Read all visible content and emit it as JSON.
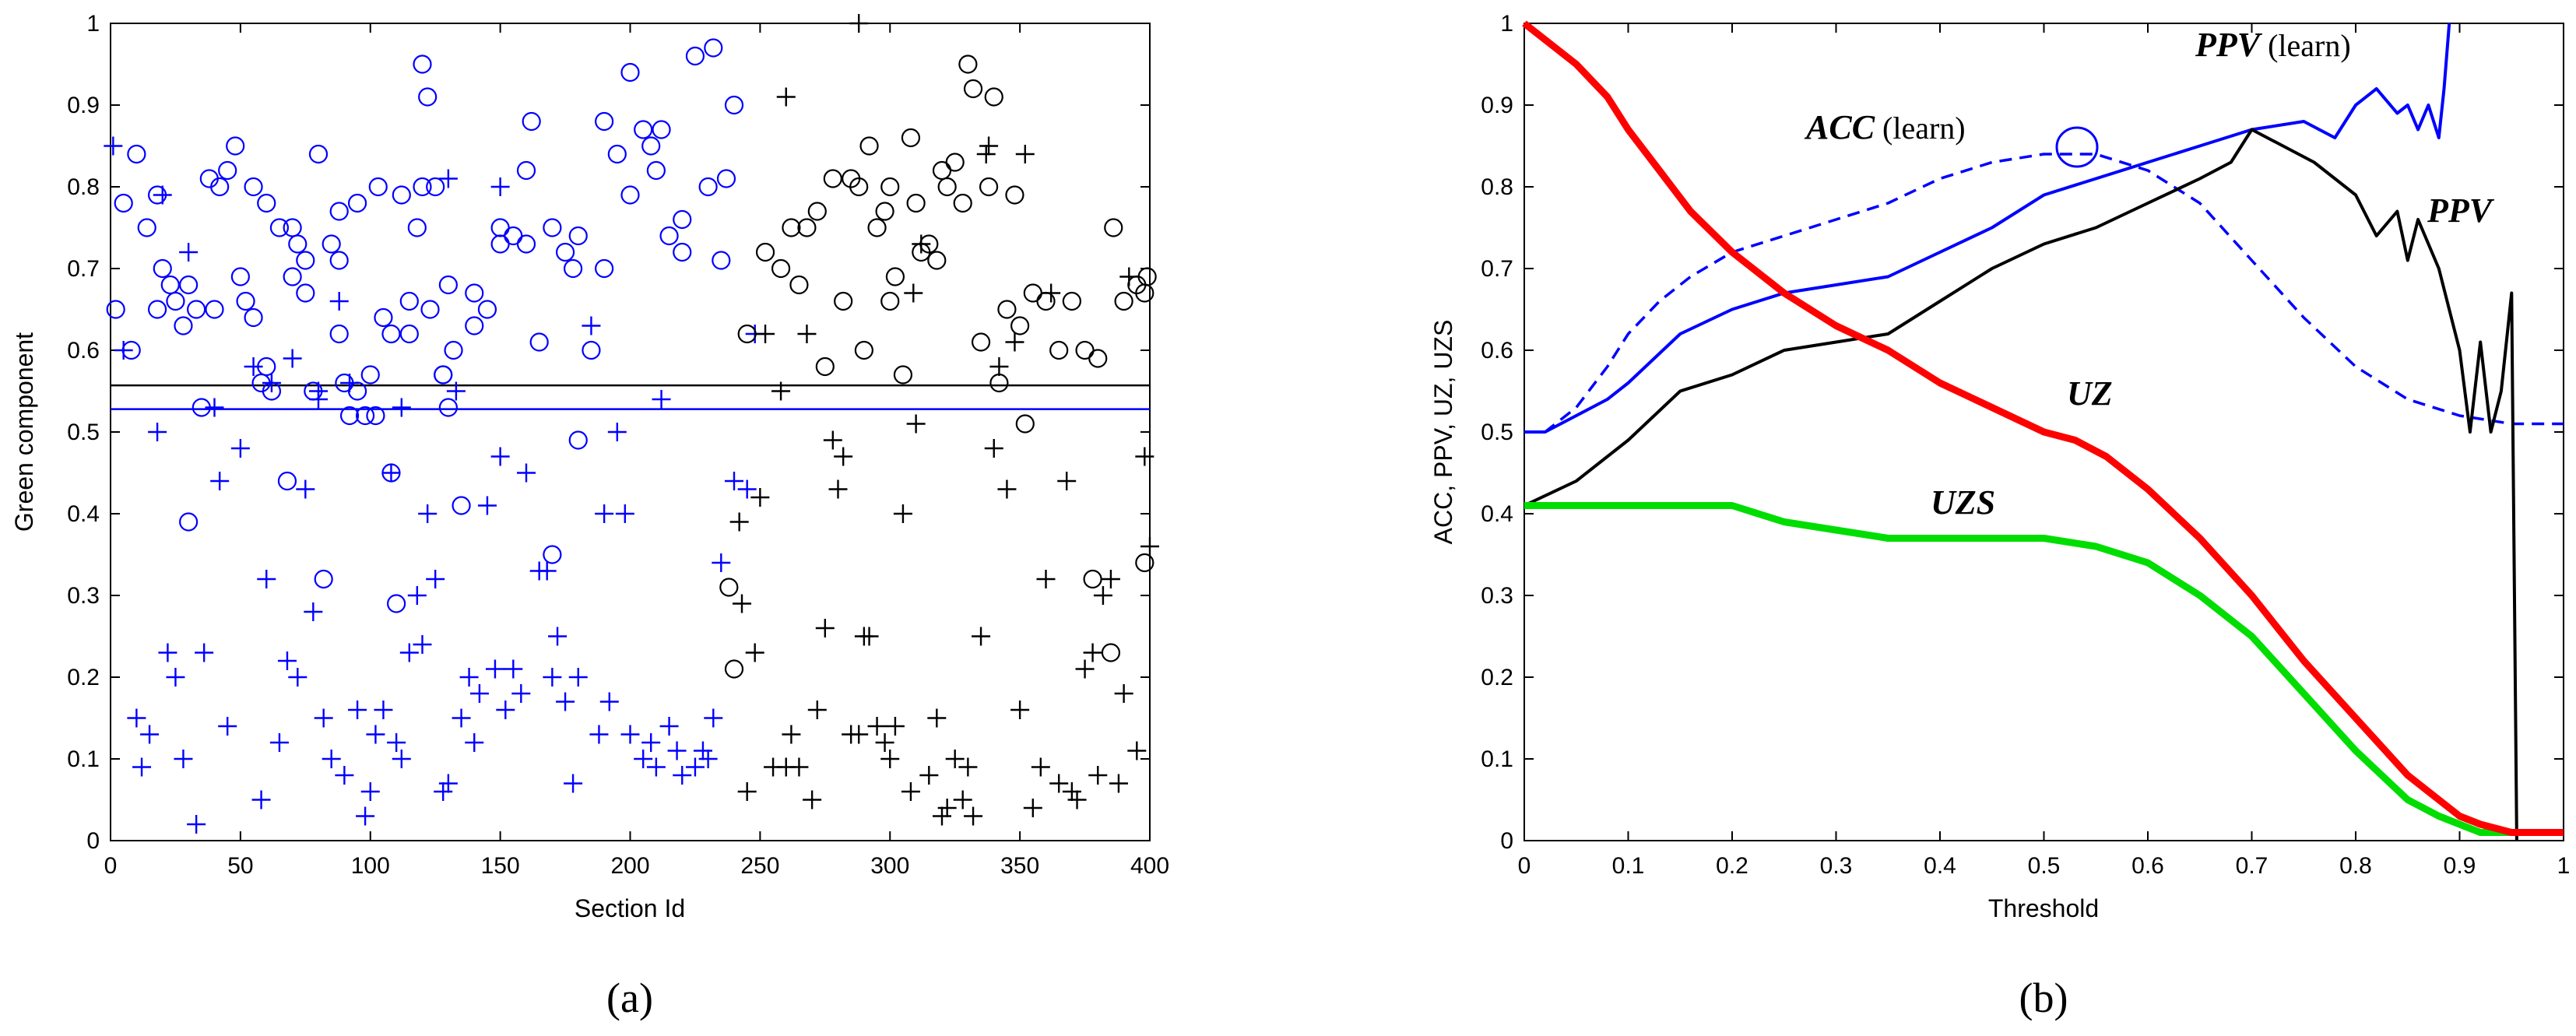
{
  "chart_data": [
    {
      "type": "scatter",
      "panel_label": "(a)",
      "xlabel": "Section Id",
      "ylabel": "Green component",
      "xlim": [
        0,
        400
      ],
      "ylim": [
        0,
        1
      ],
      "xticks": [
        "0",
        "50",
        "100",
        "150",
        "200",
        "250",
        "300",
        "350",
        "400"
      ],
      "yticks": [
        "0",
        "0.1",
        "0.2",
        "0.3",
        "0.4",
        "0.5",
        "0.6",
        "0.7",
        "0.8",
        "0.9",
        "1"
      ],
      "hlines": [
        {
          "y": 0.557,
          "color": "#000000"
        },
        {
          "y": 0.528,
          "color": "#0000ff"
        }
      ],
      "series": [
        {
          "marker": "circle",
          "color": "#0000ff",
          "x": [
            2,
            5,
            8,
            10,
            14,
            18,
            20,
            23,
            28,
            30,
            33,
            38,
            42,
            45,
            48,
            50,
            52,
            55,
            58,
            60,
            62,
            65,
            70,
            72,
            75,
            78,
            80,
            85,
            88,
            90,
            92,
            95,
            98,
            100,
            103,
            105,
            108,
            112,
            115,
            118,
            120,
            123,
            125,
            128,
            130,
            135,
            140,
            145,
            150,
            155,
            160,
            162,
            165,
            170,
            175,
            178,
            180,
            185,
            190,
            195,
            200,
            205,
            208,
            212,
            215,
            220,
            225,
            230,
            235,
            240,
            18,
            25,
            30,
            35,
            40,
            55,
            60,
            68,
            75,
            82,
            88,
            95,
            102,
            108,
            115,
            122,
            128,
            132,
            140,
            150,
            160,
            170,
            180,
            190,
            200,
            210,
            220,
            232,
            237,
            110,
            120,
            130,
            88,
            70
          ],
          "y": [
            0.65,
            0.78,
            0.6,
            0.84,
            0.75,
            0.65,
            0.7,
            0.68,
            0.63,
            0.68,
            0.65,
            0.81,
            0.8,
            0.82,
            0.85,
            0.69,
            0.66,
            0.8,
            0.56,
            0.78,
            0.55,
            0.75,
            0.69,
            0.73,
            0.71,
            0.55,
            0.84,
            0.73,
            0.77,
            0.56,
            0.52,
            0.55,
            0.52,
            0.57,
            0.8,
            0.64,
            0.62,
            0.79,
            0.66,
            0.75,
            0.95,
            0.65,
            0.8,
            0.57,
            0.53,
            0.41,
            0.67,
            0.65,
            0.75,
            0.74,
            0.82,
            0.88,
            0.61,
            0.75,
            0.72,
            0.7,
            0.74,
            0.6,
            0.88,
            0.84,
            0.94,
            0.87,
            0.85,
            0.87,
            0.74,
            0.72,
            0.96,
            0.8,
            0.71,
            0.9,
            0.79,
            0.66,
            0.39,
            0.53,
            0.65,
            0.64,
            0.58,
            0.44,
            0.67,
            0.32,
            0.62,
            0.78,
            0.52,
            0.45,
            0.62,
            0.91,
            0.57,
            0.6,
            0.63,
            0.73,
            0.73,
            0.35,
            0.49,
            0.7,
            0.79,
            0.82,
            0.76,
            0.97,
            0.81,
            0.29,
            0.8,
            0.68,
            0.71,
            0.75
          ]
        },
        {
          "marker": "plus",
          "color": "#0000ff",
          "x": [
            1,
            5,
            10,
            12,
            15,
            18,
            20,
            22,
            25,
            28,
            30,
            33,
            36,
            40,
            42,
            45,
            50,
            55,
            58,
            60,
            62,
            65,
            68,
            70,
            72,
            75,
            78,
            80,
            82,
            85,
            88,
            90,
            92,
            95,
            98,
            100,
            102,
            105,
            108,
            110,
            112,
            115,
            118,
            120,
            122,
            125,
            128,
            130,
            133,
            135,
            138,
            140,
            142,
            145,
            148,
            150,
            152,
            155,
            158,
            160,
            165,
            168,
            170,
            172,
            175,
            178,
            180,
            185,
            188,
            190,
            192,
            195,
            198,
            200,
            205,
            208,
            210,
            212,
            215,
            218,
            220,
            225,
            228,
            230,
            232,
            235,
            240,
            245,
            248,
            150,
            130,
            112,
            80
          ],
          "y": [
            0.85,
            0.6,
            0.15,
            0.09,
            0.13,
            0.5,
            0.79,
            0.23,
            0.2,
            0.1,
            0.72,
            0.02,
            0.23,
            0.53,
            0.44,
            0.14,
            0.48,
            0.58,
            0.05,
            0.32,
            0.56,
            0.12,
            0.22,
            0.59,
            0.2,
            0.43,
            0.28,
            0.54,
            0.15,
            0.1,
            0.66,
            0.08,
            0.56,
            0.16,
            0.03,
            0.06,
            0.13,
            0.16,
            0.45,
            0.12,
            0.1,
            0.23,
            0.3,
            0.24,
            0.4,
            0.32,
            0.06,
            0.07,
            0.55,
            0.15,
            0.2,
            0.12,
            0.18,
            0.41,
            0.21,
            0.47,
            0.16,
            0.21,
            0.18,
            0.45,
            0.33,
            0.33,
            0.2,
            0.25,
            0.17,
            0.07,
            0.2,
            0.63,
            0.13,
            0.4,
            0.17,
            0.5,
            0.4,
            0.13,
            0.1,
            0.12,
            0.09,
            0.54,
            0.14,
            0.11,
            0.08,
            0.09,
            0.11,
            0.1,
            0.15,
            0.34,
            0.44,
            0.43,
            0.62,
            0.8,
            0.81,
            0.53,
            0.55
          ]
        },
        {
          "marker": "circle",
          "color": "#000000",
          "x": [
            238,
            245,
            252,
            258,
            262,
            265,
            268,
            272,
            275,
            278,
            282,
            285,
            288,
            290,
            292,
            295,
            298,
            300,
            302,
            305,
            308,
            310,
            312,
            315,
            318,
            320,
            322,
            325,
            328,
            330,
            332,
            335,
            338,
            340,
            342,
            345,
            350,
            355,
            360,
            365,
            370,
            375,
            380,
            385,
            390,
            395,
            398,
            399,
            240,
            300,
            348,
            352,
            378,
            386,
            398
          ],
          "y": [
            0.31,
            0.62,
            0.72,
            0.7,
            0.75,
            0.68,
            0.75,
            0.77,
            0.58,
            0.81,
            0.66,
            0.81,
            0.8,
            0.6,
            0.85,
            0.75,
            0.77,
            0.66,
            0.69,
            0.57,
            0.86,
            0.78,
            0.72,
            0.73,
            0.71,
            0.82,
            0.8,
            0.83,
            0.78,
            0.95,
            0.92,
            0.61,
            0.8,
            0.91,
            0.56,
            0.65,
            0.63,
            0.67,
            0.66,
            0.6,
            0.66,
            0.6,
            0.59,
            0.23,
            0.66,
            0.68,
            0.67,
            0.69,
            0.21,
            0.8,
            0.79,
            0.51,
            0.32,
            0.75,
            0.34
          ]
        },
        {
          "marker": "plus",
          "color": "#000000",
          "x": [
            242,
            245,
            248,
            250,
            252,
            255,
            258,
            260,
            262,
            265,
            268,
            270,
            272,
            275,
            278,
            280,
            282,
            285,
            288,
            290,
            292,
            295,
            298,
            300,
            302,
            305,
            308,
            310,
            312,
            315,
            318,
            320,
            322,
            325,
            328,
            330,
            332,
            335,
            338,
            340,
            342,
            345,
            348,
            350,
            352,
            355,
            358,
            360,
            362,
            365,
            368,
            370,
            372,
            375,
            378,
            380,
            382,
            385,
            388,
            390,
            392,
            395,
            398,
            400,
            260,
            288,
            309,
            337,
            243
          ],
          "y": [
            0.39,
            0.06,
            0.23,
            0.42,
            0.62,
            0.09,
            0.55,
            0.09,
            0.13,
            0.09,
            0.62,
            0.05,
            0.16,
            0.26,
            0.49,
            0.43,
            0.47,
            0.13,
            0.13,
            0.25,
            0.25,
            0.14,
            0.12,
            0.1,
            0.14,
            0.4,
            0.06,
            0.51,
            0.73,
            0.08,
            0.15,
            0.03,
            0.04,
            0.1,
            0.05,
            0.09,
            0.03,
            0.25,
            0.85,
            0.48,
            0.58,
            0.43,
            0.61,
            0.16,
            0.84,
            0.04,
            0.09,
            0.32,
            0.67,
            0.07,
            0.44,
            0.06,
            0.05,
            0.21,
            0.23,
            0.08,
            0.3,
            0.32,
            0.07,
            0.18,
            0.69,
            0.11,
            0.47,
            0.36,
            0.91,
            1.0,
            0.67,
            0.84,
            0.29
          ]
        }
      ]
    },
    {
      "type": "line",
      "panel_label": "(b)",
      "xlabel": "Threshold",
      "ylabel": "ACC, PPV, UZ, UZS",
      "xlim": [
        0,
        1
      ],
      "ylim": [
        0,
        1
      ],
      "xticks": [
        "0",
        "0.1",
        "0.2",
        "0.3",
        "0.4",
        "0.5",
        "0.6",
        "0.7",
        "0.8",
        "0.9",
        "1"
      ],
      "yticks": [
        "0",
        "0.1",
        "0.2",
        "0.3",
        "0.4",
        "0.5",
        "0.6",
        "0.7",
        "0.8",
        "0.9",
        "1"
      ],
      "annotations": [
        {
          "text": "PPV",
          "suffix": " (learn)",
          "color": "#000000"
        },
        {
          "text": "ACC",
          "suffix": " (learn)",
          "color": "#000000"
        },
        {
          "text": "PPV",
          "suffix": "",
          "color": "#000000"
        },
        {
          "text": "UZ",
          "suffix": "",
          "color": "#000000"
        },
        {
          "text": "UZS",
          "suffix": "",
          "color": "#000000"
        }
      ],
      "series": [
        {
          "key": "uz",
          "color": "#ff0000",
          "style": "solid-thick",
          "x": [
            0,
            0.02,
            0.05,
            0.08,
            0.1,
            0.13,
            0.16,
            0.2,
            0.25,
            0.3,
            0.35,
            0.4,
            0.45,
            0.5,
            0.53,
            0.56,
            0.6,
            0.65,
            0.7,
            0.75,
            0.8,
            0.85,
            0.88,
            0.9,
            0.92,
            0.95,
            1.0
          ],
          "y": [
            1.0,
            0.98,
            0.95,
            0.91,
            0.87,
            0.82,
            0.77,
            0.72,
            0.67,
            0.63,
            0.6,
            0.56,
            0.53,
            0.5,
            0.49,
            0.47,
            0.43,
            0.37,
            0.3,
            0.22,
            0.15,
            0.08,
            0.05,
            0.03,
            0.02,
            0.01,
            0.01
          ]
        },
        {
          "key": "uzs",
          "color": "#00dd00",
          "style": "solid-thick",
          "x": [
            0,
            0.05,
            0.1,
            0.15,
            0.2,
            0.25,
            0.3,
            0.35,
            0.4,
            0.45,
            0.5,
            0.55,
            0.6,
            0.65,
            0.7,
            0.75,
            0.8,
            0.85,
            0.88,
            0.9,
            0.92,
            0.95,
            1.0
          ],
          "y": [
            0.41,
            0.41,
            0.41,
            0.41,
            0.41,
            0.39,
            0.38,
            0.37,
            0.37,
            0.37,
            0.37,
            0.36,
            0.34,
            0.3,
            0.25,
            0.18,
            0.11,
            0.05,
            0.03,
            0.02,
            0.01,
            0.01,
            0.01
          ]
        },
        {
          "key": "ppv",
          "color": "#000000",
          "style": "solid",
          "x": [
            0,
            0.05,
            0.1,
            0.15,
            0.2,
            0.25,
            0.3,
            0.35,
            0.4,
            0.45,
            0.5,
            0.55,
            0.6,
            0.65,
            0.68,
            0.7,
            0.73,
            0.76,
            0.8,
            0.82,
            0.84,
            0.85,
            0.86,
            0.88,
            0.9,
            0.91,
            0.92,
            0.93,
            0.94,
            0.95,
            0.955
          ],
          "y": [
            0.41,
            0.44,
            0.49,
            0.55,
            0.57,
            0.6,
            0.61,
            0.62,
            0.66,
            0.7,
            0.73,
            0.75,
            0.78,
            0.81,
            0.83,
            0.87,
            0.85,
            0.83,
            0.79,
            0.74,
            0.77,
            0.71,
            0.76,
            0.7,
            0.6,
            0.5,
            0.61,
            0.5,
            0.55,
            0.67,
            0.0
          ]
        },
        {
          "key": "ppv-learn",
          "color": "#0000ff",
          "style": "solid",
          "x": [
            0,
            0.02,
            0.05,
            0.08,
            0.1,
            0.15,
            0.2,
            0.25,
            0.3,
            0.35,
            0.4,
            0.45,
            0.5,
            0.55,
            0.6,
            0.65,
            0.7,
            0.75,
            0.78,
            0.8,
            0.82,
            0.84,
            0.85,
            0.86,
            0.87,
            0.88,
            0.885,
            0.89
          ],
          "y": [
            0.5,
            0.5,
            0.52,
            0.54,
            0.56,
            0.62,
            0.65,
            0.67,
            0.68,
            0.69,
            0.72,
            0.75,
            0.79,
            0.81,
            0.83,
            0.85,
            0.87,
            0.88,
            0.86,
            0.9,
            0.92,
            0.89,
            0.9,
            0.87,
            0.9,
            0.86,
            0.92,
            1.0
          ]
        },
        {
          "key": "acc-learn",
          "color": "#0000ff",
          "style": "dashed",
          "x": [
            0,
            0.02,
            0.05,
            0.08,
            0.1,
            0.13,
            0.16,
            0.2,
            0.25,
            0.3,
            0.35,
            0.4,
            0.45,
            0.5,
            0.55,
            0.6,
            0.65,
            0.7,
            0.75,
            0.8,
            0.85,
            0.9,
            0.95,
            1.0
          ],
          "y": [
            0.5,
            0.5,
            0.53,
            0.58,
            0.62,
            0.66,
            0.69,
            0.72,
            0.74,
            0.76,
            0.78,
            0.81,
            0.83,
            0.84,
            0.84,
            0.82,
            0.78,
            0.71,
            0.64,
            0.58,
            0.54,
            0.52,
            0.51,
            0.51
          ]
        }
      ]
    }
  ]
}
